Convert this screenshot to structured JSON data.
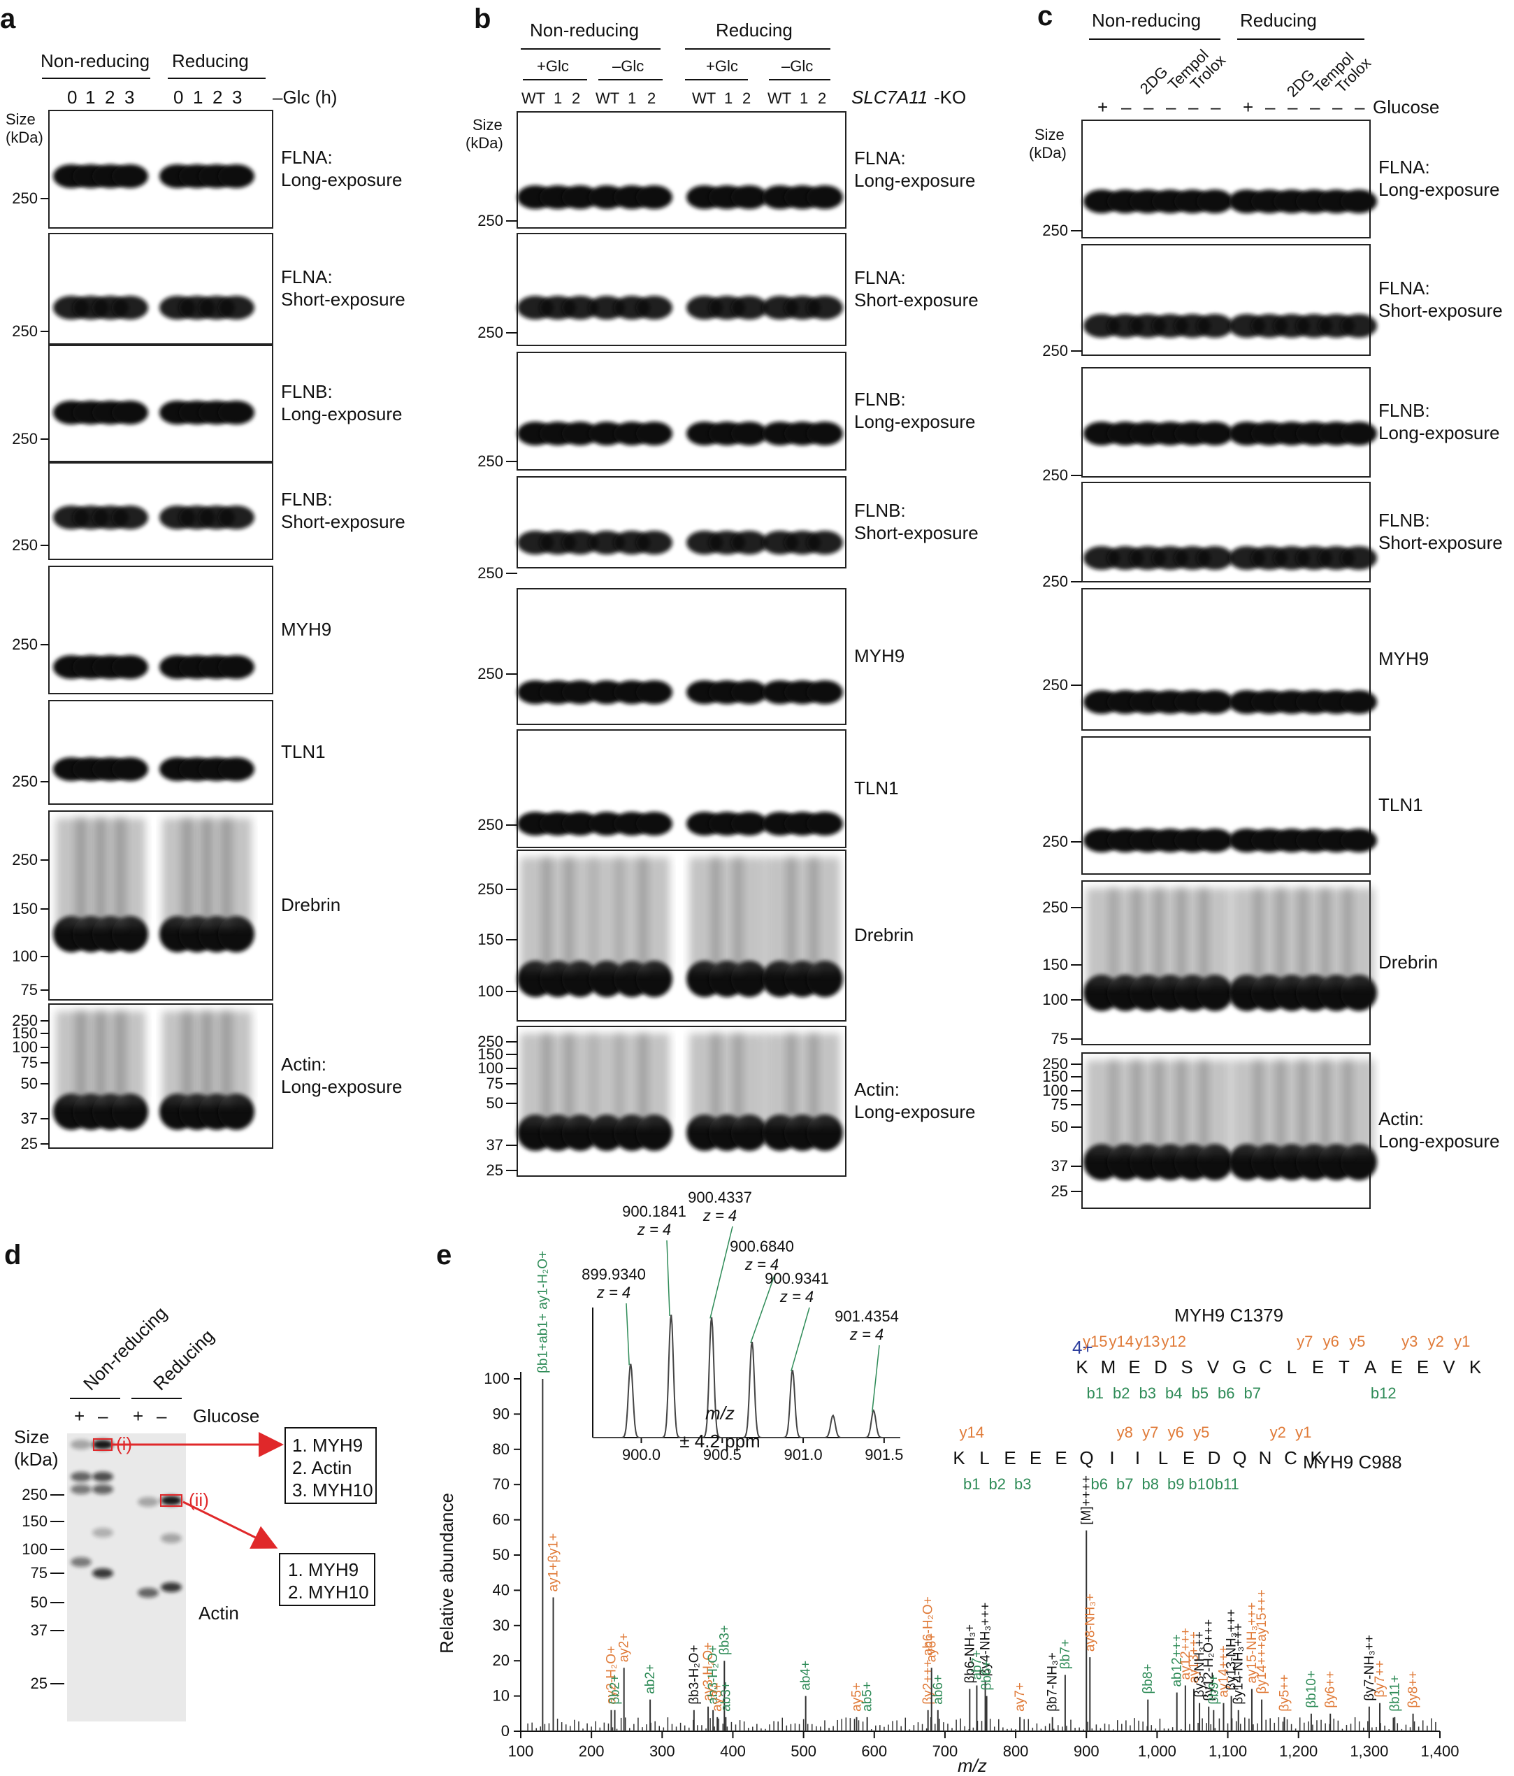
{
  "panel_a": {
    "letter": "a",
    "groups": [
      "Non-reducing",
      "Reducing"
    ],
    "time_labels": [
      "0",
      "1",
      "2",
      "3",
      "0",
      "1",
      "2",
      "3"
    ],
    "time_axis": "–Glc (h)",
    "size_label": [
      "Size",
      "(kDa)"
    ],
    "blots": [
      {
        "lines": [
          "FLNA:",
          "Long-exposure"
        ],
        "markers": [
          "250"
        ]
      },
      {
        "lines": [
          "FLNA:",
          "Short-exposure"
        ],
        "markers": [
          "250"
        ]
      },
      {
        "lines": [
          "FLNB:",
          "Long-exposure"
        ],
        "markers": [
          "250"
        ]
      },
      {
        "lines": [
          "FLNB:",
          "Short-exposure"
        ],
        "markers": [
          "250"
        ]
      },
      {
        "lines": [
          "MYH9"
        ],
        "markers": [
          "250"
        ]
      },
      {
        "lines": [
          "TLN1"
        ],
        "markers": [
          "250"
        ]
      },
      {
        "lines": [
          "Drebrin"
        ],
        "markers": [
          "250",
          "150",
          "100",
          "75"
        ]
      },
      {
        "lines": [
          "Actin:",
          "Long-exposure"
        ],
        "markers": [
          "250",
          "150",
          "100",
          "75",
          "50",
          "37",
          "25"
        ]
      }
    ]
  },
  "panel_b": {
    "letter": "b",
    "groups": [
      "Non-reducing",
      "Reducing"
    ],
    "subgroups": [
      "+Glc",
      "–Glc",
      "+Glc",
      "–Glc"
    ],
    "lane_labels": [
      "WT",
      "1",
      "2",
      "WT",
      "1",
      "2",
      "WT",
      "1",
      "2",
      "WT",
      "1",
      "2"
    ],
    "ko_label": "SLC7A11",
    "ko_suffix": "-KO",
    "size_label": [
      "Size",
      "(kDa)"
    ],
    "blots": [
      {
        "lines": [
          "FLNA:",
          "Long-exposure"
        ],
        "markers": [
          "250"
        ]
      },
      {
        "lines": [
          "FLNA:",
          "Short-exposure"
        ],
        "markers": [
          "250"
        ]
      },
      {
        "lines": [
          "FLNB:",
          "Long-exposure"
        ],
        "markers": [
          "250"
        ]
      },
      {
        "lines": [
          "FLNB:",
          "Short-exposure"
        ],
        "markers": [
          "250"
        ]
      },
      {
        "lines": [
          "MYH9"
        ],
        "markers": [
          "250"
        ]
      },
      {
        "lines": [
          "TLN1"
        ],
        "markers": [
          "250"
        ]
      },
      {
        "lines": [
          "Drebrin"
        ],
        "markers": [
          "250",
          "150",
          "100"
        ]
      },
      {
        "lines": [
          "Actin:",
          "Long-exposure"
        ],
        "markers": [
          "250",
          "150",
          "100",
          "75",
          "50",
          "37",
          "25"
        ]
      }
    ]
  },
  "panel_c": {
    "letter": "c",
    "groups": [
      "Non-reducing",
      "Reducing"
    ],
    "treatments": [
      "2DG",
      "Tempol",
      "Trolox",
      "2DG",
      "Tempol",
      "Trolox"
    ],
    "glucose_signs": [
      "+",
      "–",
      "–",
      "–",
      "–",
      "–",
      "+",
      "–",
      "–",
      "–",
      "–",
      "–"
    ],
    "glucose_label": "Glucose",
    "size_label": [
      "Size",
      "(kDa)"
    ],
    "blots": [
      {
        "lines": [
          "FLNA:",
          "Long-exposure"
        ],
        "markers": [
          "250"
        ]
      },
      {
        "lines": [
          "FLNA:",
          "Short-exposure"
        ],
        "markers": [
          "250"
        ]
      },
      {
        "lines": [
          "FLNB:",
          "Long-exposure"
        ],
        "markers": [
          "250"
        ]
      },
      {
        "lines": [
          "FLNB:",
          "Short-exposure"
        ],
        "markers": [
          "250"
        ]
      },
      {
        "lines": [
          "MYH9"
        ],
        "markers": [
          "250"
        ]
      },
      {
        "lines": [
          "TLN1"
        ],
        "markers": [
          "250"
        ]
      },
      {
        "lines": [
          "Drebrin"
        ],
        "markers": [
          "250",
          "150",
          "100",
          "75"
        ]
      },
      {
        "lines": [
          "Actin:",
          "Long-exposure"
        ],
        "markers": [
          "250",
          "150",
          "100",
          "75",
          "50",
          "37",
          "25"
        ]
      }
    ]
  },
  "panel_d": {
    "letter": "d",
    "groups": [
      "Non-reducing",
      "Reducing"
    ],
    "glucose_signs": [
      "+",
      "–",
      "+",
      "–"
    ],
    "glucose_label": "Glucose",
    "size_label": [
      "Size",
      "(kDa)"
    ],
    "markers": [
      "250",
      "150",
      "100",
      "75",
      "50",
      "37",
      "25"
    ],
    "band_i": "(i)",
    "band_ii": "(ii)",
    "box_i": [
      "1. MYH9",
      "2. Actin",
      "3. MYH10"
    ],
    "box_ii": [
      "1. MYH9",
      "2. MYH10"
    ],
    "actin_label": "Actin",
    "accent_color": "#e0282a"
  },
  "panel_e": {
    "letter": "e",
    "chart_data": {
      "type": "spectrum",
      "xlabel": "m/z",
      "ylabel": "Relative abundance",
      "xlim": [
        100,
        1400
      ],
      "ylim": [
        0,
        100
      ],
      "xticks": [
        "100",
        "200",
        "300",
        "400",
        "500",
        "600",
        "700",
        "800",
        "900",
        "1,000",
        "1,100",
        "1,200",
        "1,300",
        "1,400"
      ],
      "yticks": [
        "0",
        "10",
        "20",
        "30",
        "40",
        "50",
        "60",
        "70",
        "80",
        "90",
        "100"
      ],
      "peaks": [
        {
          "x": 131,
          "y": 100,
          "label": "βb1+ab1+ ay1-H₂O+",
          "color": "#2e8b57"
        },
        {
          "x": 146,
          "y": 38,
          "label": "ay1+βy1+",
          "color": "#e07b39"
        },
        {
          "x": 228,
          "y": 6,
          "label": "ay2-H₂O+",
          "color": "#e07b39"
        },
        {
          "x": 233,
          "y": 6,
          "label": "βb2+",
          "color": "#2e8b57"
        },
        {
          "x": 246,
          "y": 18,
          "label": "ay2+",
          "color": "#e07b39"
        },
        {
          "x": 283,
          "y": 9,
          "label": "ab2+",
          "color": "#2e8b57"
        },
        {
          "x": 345,
          "y": 6,
          "label": "βb3-H₂O+",
          "color": "#111"
        },
        {
          "x": 365,
          "y": 7,
          "label": "ay3-H₂O+",
          "color": "#e07b39"
        },
        {
          "x": 372,
          "y": 6,
          "label": "ab3-H₂O+",
          "color": "#2e8b57"
        },
        {
          "x": 388,
          "y": 20,
          "label": "βb3+",
          "color": "#2e8b57"
        },
        {
          "x": 378,
          "y": 4,
          "label": "ay3+",
          "color": "#e07b39"
        },
        {
          "x": 390,
          "y": 4,
          "label": "ab3+",
          "color": "#2e8b57"
        },
        {
          "x": 503,
          "y": 10,
          "label": "ab4+",
          "color": "#2e8b57"
        },
        {
          "x": 575,
          "y": 4,
          "label": "ay5+",
          "color": "#e07b39"
        },
        {
          "x": 590,
          "y": 4,
          "label": "ab5+",
          "color": "#2e8b57"
        },
        {
          "x": 676,
          "y": 6,
          "label": "βy2+++ ab6-H₂O+",
          "color": "#e07b39"
        },
        {
          "x": 681,
          "y": 18,
          "label": "ay6+",
          "color": "#e07b39"
        },
        {
          "x": 690,
          "y": 6,
          "label": "ab6+",
          "color": "#2e8b57"
        },
        {
          "x": 735,
          "y": 12,
          "label": "βb6-NH₃+",
          "color": "#111"
        },
        {
          "x": 745,
          "y": 13,
          "label": "ab7+",
          "color": "#2e8b57"
        },
        {
          "x": 757,
          "y": 14,
          "label": "βy4-NH₃+++",
          "color": "#111"
        },
        {
          "x": 759,
          "y": 10,
          "label": "βb6+",
          "color": "#2e8b57"
        },
        {
          "x": 806,
          "y": 4,
          "label": "ay7+",
          "color": "#e07b39"
        },
        {
          "x": 852,
          "y": 4,
          "label": "βb7-NH₃+",
          "color": "#111"
        },
        {
          "x": 870,
          "y": 16,
          "label": "βb7+",
          "color": "#2e8b57"
        },
        {
          "x": 900,
          "y": 57,
          "label": "[M]++++",
          "color": "#111"
        },
        {
          "x": 905,
          "y": 21,
          "label": "ay8-NH₃+",
          "color": "#e07b39"
        },
        {
          "x": 987,
          "y": 9,
          "label": "βb8+",
          "color": "#2e8b57"
        },
        {
          "x": 1028,
          "y": 11,
          "label": "ab12+++",
          "color": "#2e8b57"
        },
        {
          "x": 1040,
          "y": 13,
          "label": "ay12+++",
          "color": "#e07b39"
        },
        {
          "x": 1052,
          "y": 12,
          "label": "ay13+++",
          "color": "#e07b39"
        },
        {
          "x": 1060,
          "y": 8,
          "label": "βy3-NH₃++",
          "color": "#111"
        },
        {
          "x": 1073,
          "y": 7,
          "label": "βy12-H₂O+++",
          "color": "#111"
        },
        {
          "x": 1080,
          "y": 6,
          "label": "βb9+",
          "color": "#2e8b57"
        },
        {
          "x": 1094,
          "y": 8,
          "label": "ay14+++",
          "color": "#e07b39"
        },
        {
          "x": 1105,
          "y": 10,
          "label": "βy13-NH₃+++",
          "color": "#111"
        },
        {
          "x": 1115,
          "y": 6,
          "label": "βy14-NH₃+++",
          "color": "#111"
        },
        {
          "x": 1134,
          "y": 12,
          "label": "ay15-NH₃+++",
          "color": "#e07b39"
        },
        {
          "x": 1148,
          "y": 9,
          "label": "βy14+++ay15+++",
          "color": "#e07b39"
        },
        {
          "x": 1180,
          "y": 4,
          "label": "βy5++",
          "color": "#e07b39"
        },
        {
          "x": 1218,
          "y": 5,
          "label": "βb10+",
          "color": "#2e8b57"
        },
        {
          "x": 1245,
          "y": 5,
          "label": "βy6++",
          "color": "#e07b39"
        },
        {
          "x": 1300,
          "y": 7,
          "label": "βy7-NH₃++",
          "color": "#111"
        },
        {
          "x": 1315,
          "y": 8,
          "label": "βy7++",
          "color": "#e07b39"
        },
        {
          "x": 1336,
          "y": 4,
          "label": "βb11+",
          "color": "#2e8b57"
        },
        {
          "x": 1362,
          "y": 5,
          "label": "βy8++",
          "color": "#e07b39"
        }
      ]
    },
    "inset": {
      "chart_data": {
        "type": "spectrum",
        "xlabel": "m/z",
        "xlim": [
          899.7,
          901.6
        ],
        "xticks": [
          "900.0",
          "900.5",
          "901.0",
          "901.5"
        ],
        "ppm": "± 4.2 ppm",
        "peaks": [
          {
            "x": 899.934,
            "y": 60,
            "label": "899.9340",
            "z": "z = 4"
          },
          {
            "x": 900.184,
            "y": 100,
            "label": "900.1841",
            "z": "z = 4"
          },
          {
            "x": 900.434,
            "y": 98,
            "label": "900.4337",
            "z": "z = 4"
          },
          {
            "x": 900.684,
            "y": 78,
            "label": "900.6840",
            "z": "z = 4"
          },
          {
            "x": 900.934,
            "y": 55,
            "label": "900.9341",
            "z": "z = 4"
          },
          {
            "x": 901.184,
            "y": 18,
            "label": "",
            "z": ""
          },
          {
            "x": 901.435,
            "y": 22,
            "label": "901.4354",
            "z": "z = 4"
          }
        ]
      }
    },
    "peptide": {
      "title1": "MYH9 C1379",
      "charge": "4+",
      "charge_color": "#2e3f9e",
      "seq1": [
        "K",
        "M",
        "E",
        "D",
        "S",
        "V",
        "G",
        "C",
        "L",
        "E",
        "T",
        "A",
        "E",
        "E",
        "V",
        "K"
      ],
      "seq1_y": [
        "y15",
        "y14",
        "y13",
        "y12",
        "y7",
        "y6",
        "y5",
        "y3",
        "y2",
        "y1"
      ],
      "seq1_b": [
        "b1",
        "b2",
        "b3",
        "b4",
        "b5",
        "b6",
        "b7",
        "b12"
      ],
      "seq2": [
        "K",
        "L",
        "E",
        "E",
        "E",
        "Q",
        "I",
        "I",
        "L",
        "E",
        "D",
        "Q",
        "N",
        "C",
        "K"
      ],
      "seq2_y": [
        "y14",
        "y8",
        "y7",
        "y6",
        "y5",
        "y2",
        "y1"
      ],
      "seq2_b": [
        "b1",
        "b2",
        "b3",
        "b6",
        "b7",
        "b8",
        "b9",
        "b10",
        "b11"
      ],
      "title2": "MYH9 C988",
      "orange": "#e07b39",
      "green": "#2e8b57"
    }
  }
}
